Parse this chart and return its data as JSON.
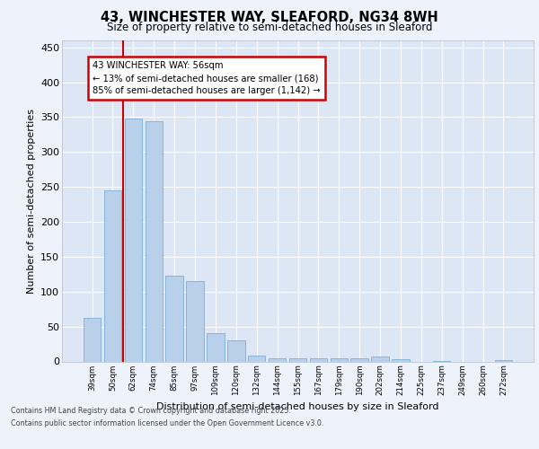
{
  "title_line1": "43, WINCHESTER WAY, SLEAFORD, NG34 8WH",
  "title_line2": "Size of property relative to semi-detached houses in Sleaford",
  "xlabel": "Distribution of semi-detached houses by size in Sleaford",
  "ylabel": "Number of semi-detached properties",
  "categories": [
    "39sqm",
    "50sqm",
    "62sqm",
    "74sqm",
    "85sqm",
    "97sqm",
    "109sqm",
    "120sqm",
    "132sqm",
    "144sqm",
    "155sqm",
    "167sqm",
    "179sqm",
    "190sqm",
    "202sqm",
    "214sqm",
    "225sqm",
    "237sqm",
    "249sqm",
    "260sqm",
    "272sqm"
  ],
  "values": [
    62,
    245,
    348,
    344,
    123,
    115,
    40,
    30,
    9,
    4,
    4,
    4,
    5,
    5,
    7,
    3,
    0,
    1,
    0,
    0,
    2
  ],
  "bar_color": "#b8d0ea",
  "bar_edge_color": "#7aafd4",
  "vline_color": "#cc0000",
  "annotation_title": "43 WINCHESTER WAY: 56sqm",
  "annotation_line2": "← 13% of semi-detached houses are smaller (168)",
  "annotation_line3": "85% of semi-detached houses are larger (1,142) →",
  "annotation_box_color": "#cc0000",
  "ylim": [
    0,
    460
  ],
  "yticks": [
    0,
    50,
    100,
    150,
    200,
    250,
    300,
    350,
    400,
    450
  ],
  "footer_line1": "Contains HM Land Registry data © Crown copyright and database right 2025.",
  "footer_line2": "Contains public sector information licensed under the Open Government Licence v3.0.",
  "bg_color": "#eef2fa",
  "plot_bg_color": "#dde6f5"
}
